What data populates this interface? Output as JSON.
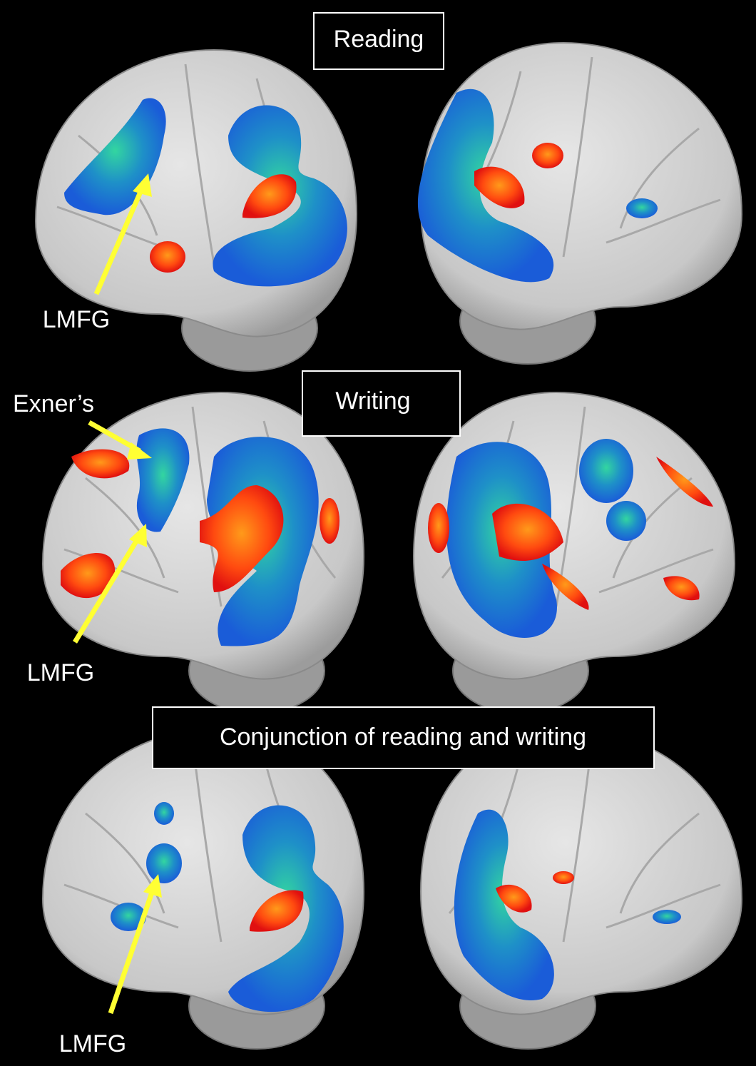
{
  "panels": [
    {
      "title": "Reading",
      "labels": [
        "LMFG"
      ]
    },
    {
      "title": "Writing",
      "labels": [
        "Exner’s",
        "LMFG"
      ]
    },
    {
      "title": "Conjunction of reading and writing",
      "labels": [
        "LMFG"
      ]
    }
  ]
}
